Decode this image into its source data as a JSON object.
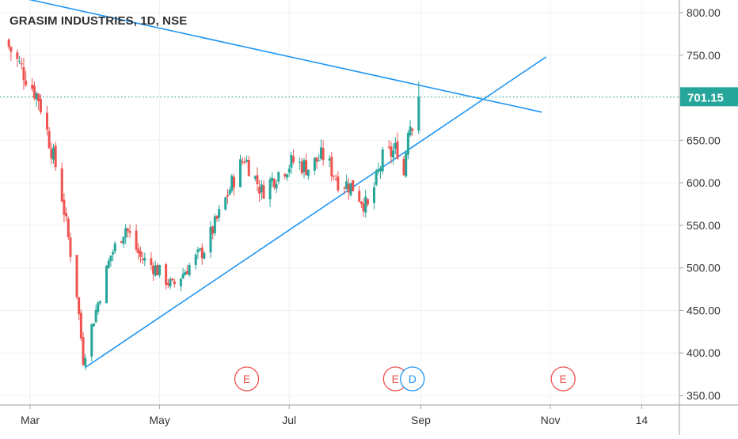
{
  "chart_data": {
    "type": "candlestick",
    "title": "GRASIM INDUSTRIES, 1D, NSE",
    "ylim": [
      350,
      800
    ],
    "y_ticks": [
      "800.00",
      "750.00",
      "700.00",
      "650.00",
      "600.00",
      "550.00",
      "500.00",
      "450.00",
      "400.00",
      "350.00"
    ],
    "x_labels": [
      {
        "label": "Mar",
        "date": "2020-03-01"
      },
      {
        "label": "May",
        "date": "2020-05-01"
      },
      {
        "label": "Jul",
        "date": "2020-07-01"
      },
      {
        "label": "Sep",
        "date": "2020-09-01"
      },
      {
        "label": "Nov",
        "date": "2020-11-01"
      },
      {
        "label": "14",
        "date": "2020-12-14"
      }
    ],
    "last_price": "701.15",
    "colors": {
      "up": "#26a69a",
      "down": "#ef5350",
      "trendline": "#2196f3",
      "price_line": "#26a69a"
    },
    "price_path": [
      {
        "date": "2020-02-20",
        "close": 760
      },
      {
        "date": "2020-03-05",
        "close": 700
      },
      {
        "date": "2020-03-15",
        "close": 600
      },
      {
        "date": "2020-03-23",
        "close": 470
      },
      {
        "date": "2020-03-26",
        "close": 392
      },
      {
        "date": "2020-04-01",
        "close": 450
      },
      {
        "date": "2020-04-08",
        "close": 515
      },
      {
        "date": "2020-04-15",
        "close": 548
      },
      {
        "date": "2020-04-22",
        "close": 512
      },
      {
        "date": "2020-04-29",
        "close": 500
      },
      {
        "date": "2020-05-07",
        "close": 478
      },
      {
        "date": "2020-05-14",
        "close": 500
      },
      {
        "date": "2020-05-22",
        "close": 522
      },
      {
        "date": "2020-05-29",
        "close": 562
      },
      {
        "date": "2020-06-05",
        "close": 605
      },
      {
        "date": "2020-06-10",
        "close": 630
      },
      {
        "date": "2020-06-18",
        "close": 590
      },
      {
        "date": "2020-06-26",
        "close": 612
      },
      {
        "date": "2020-07-03",
        "close": 625
      },
      {
        "date": "2020-07-10",
        "close": 618
      },
      {
        "date": "2020-07-17",
        "close": 632
      },
      {
        "date": "2020-07-24",
        "close": 603
      },
      {
        "date": "2020-07-31",
        "close": 595
      },
      {
        "date": "2020-08-07",
        "close": 570
      },
      {
        "date": "2020-08-14",
        "close": 628
      },
      {
        "date": "2020-08-21",
        "close": 640
      },
      {
        "date": "2020-08-24",
        "close": 610
      },
      {
        "date": "2020-08-26",
        "close": 668
      },
      {
        "date": "2020-08-29",
        "close": 675
      },
      {
        "date": "2020-08-31",
        "close": 701.15
      }
    ],
    "trendlines": [
      {
        "from": {
          "date": "2020-03-27",
          "price": 383
        },
        "to": {
          "date": "2020-10-30",
          "price": 748
        }
      },
      {
        "from": {
          "date": "2020-02-25",
          "price": 818
        },
        "to": {
          "date": "2020-10-28",
          "price": 683
        }
      }
    ],
    "events": [
      {
        "date": "2020-06-11",
        "label": "E"
      },
      {
        "date": "2020-08-20",
        "label": "E"
      },
      {
        "date": "2020-08-28",
        "label": "D"
      },
      {
        "date": "2020-11-07",
        "label": "E"
      }
    ]
  }
}
